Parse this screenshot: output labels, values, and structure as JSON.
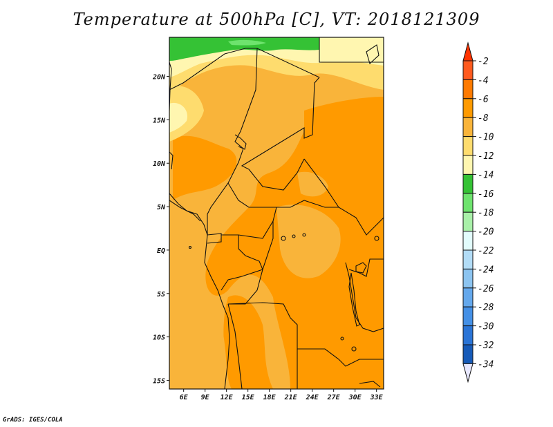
{
  "title": "Temperature at 500hPa [C], VT: 2018121309",
  "credit": "GrADS: IGES/COLA",
  "map": {
    "lon_range": [
      4,
      34
    ],
    "lat_range": [
      -16,
      24.5
    ],
    "x_ticks": [
      "6E",
      "9E",
      "12E",
      "15E",
      "18E",
      "21E",
      "24E",
      "27E",
      "30E",
      "33E"
    ],
    "y_ticks": [
      "20N",
      "15N",
      "10N",
      "5N",
      "EQ",
      "5S",
      "10S",
      "15S"
    ]
  },
  "colorbar": {
    "labels": [
      "-2",
      "-4",
      "-6",
      "-8",
      "-10",
      "-12",
      "-14",
      "-16",
      "-18",
      "-20",
      "-22",
      "-24",
      "-26",
      "-28",
      "-30",
      "-32",
      "-34"
    ],
    "colors": [
      "#ff5a1e",
      "#ff7a00",
      "#ff9a00",
      "#f9b43a",
      "#fedc6e",
      "#fff6b0",
      "#35c235",
      "#6ee36e",
      "#a9f0a9",
      "#e2fcfc",
      "#b2dcf6",
      "#8cc4f0",
      "#64a8ec",
      "#4490e6",
      "#2a74d6",
      "#165ab8",
      "#0c1e78"
    ],
    "top_arrow_color": "#ff3300",
    "bottom_arrow_color": "#e8e8ff"
  }
}
